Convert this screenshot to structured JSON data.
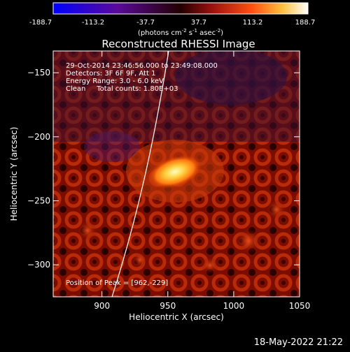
{
  "colorbar": {
    "ticks": [
      "-188.7",
      "-113.2",
      "-37.7",
      "37.7",
      "113.2",
      "188.7"
    ],
    "units_main": "(photons cm",
    "units_exp1": "-2",
    "units_mid": " s",
    "units_exp2": "-1",
    "units_end": " asec",
    "units_exp3": "-2",
    "units_close": ")"
  },
  "chart_data": {
    "type": "heatmap",
    "title": "Reconstructed RHESSI Image",
    "xlabel": "Heliocentric X (arcsec)",
    "ylabel": "Heliocentric Y (arcsec)",
    "xlim": [
      863,
      1050
    ],
    "ylim": [
      -325,
      -133
    ],
    "xticks": [
      900,
      950,
      1000,
      1050
    ],
    "yticks": [
      -150,
      -200,
      -250,
      -300
    ],
    "colorbar_range": [
      -188.7,
      188.7
    ],
    "peak": [
      962,
      -229
    ],
    "annotations": [
      "29-Oct-2014 23:46:56.000 to 23:49:08.000",
      "Detectors: 3F 6F 9F, Att 1",
      "Energy Range: 3.0 - 6.0 keV",
      "Clean     Total counts: 1.80E+03",
      "Position of Peak = [962,-229]"
    ]
  },
  "footer": {
    "date": "18-May-2022 21:22"
  },
  "colors": {
    "limb": "#ffffff",
    "background": "#000000"
  }
}
